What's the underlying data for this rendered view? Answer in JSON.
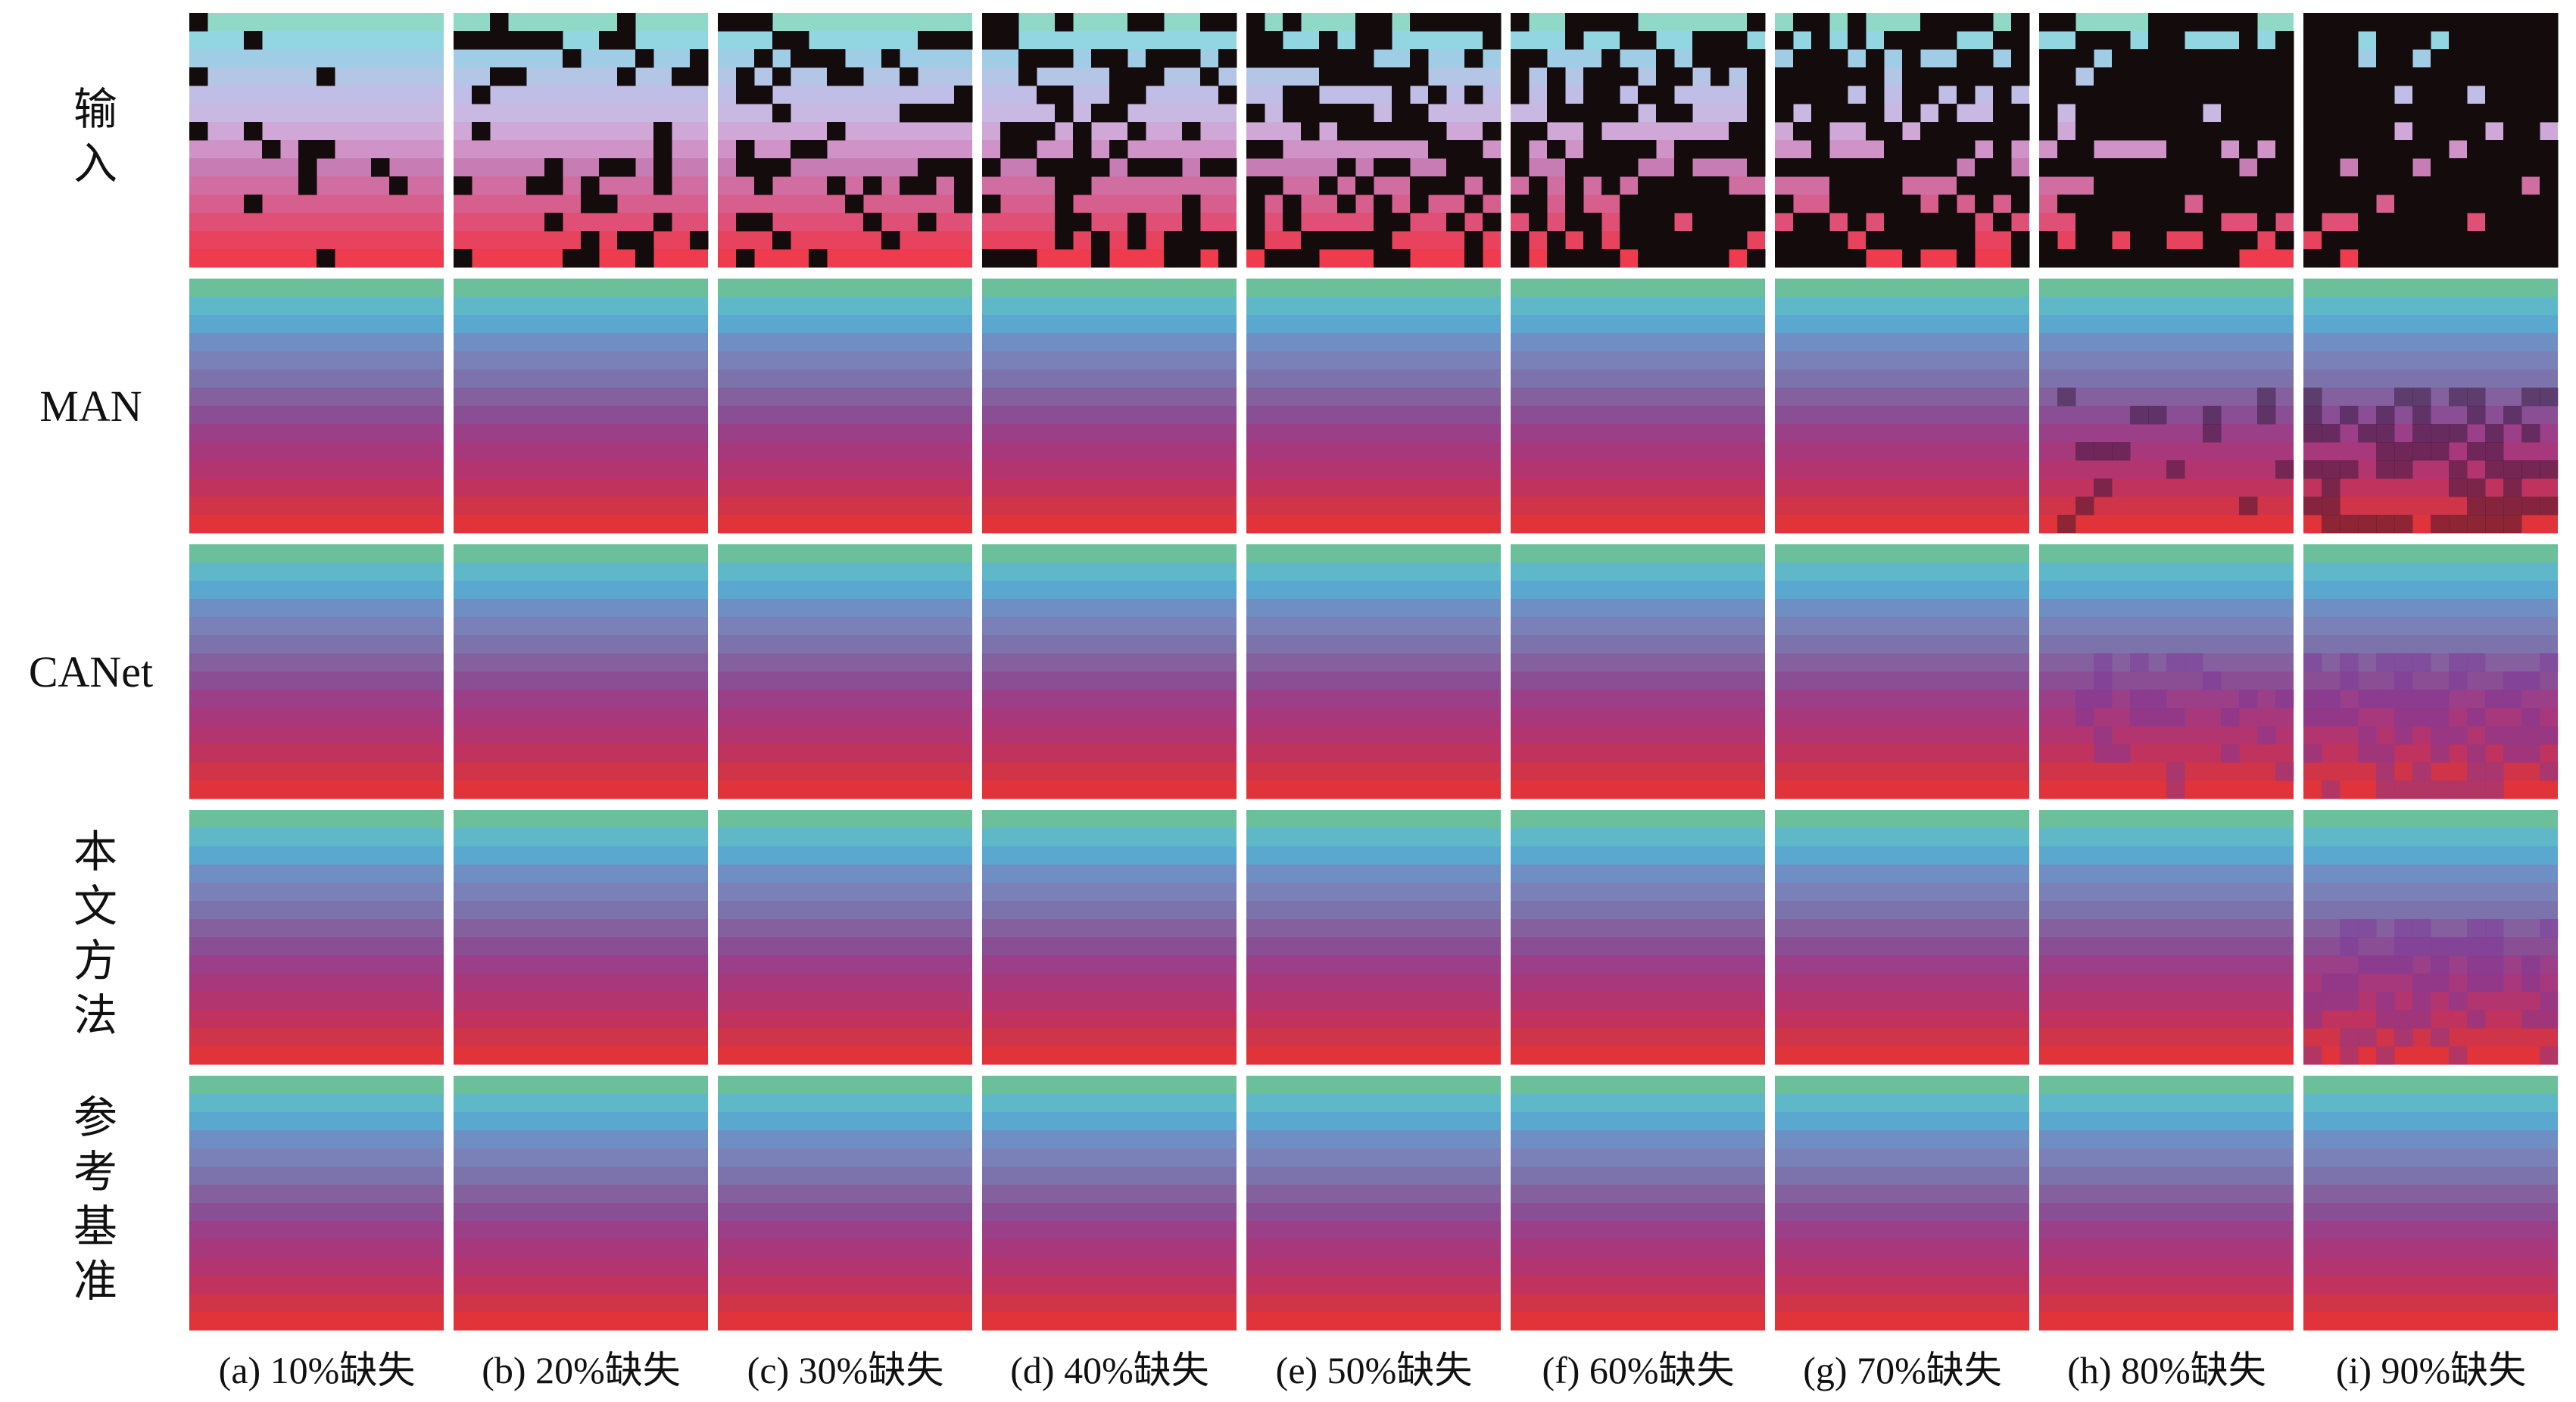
{
  "row_labels": [
    "输入",
    "MAN",
    "CANet",
    "本文方法",
    "参考基准"
  ],
  "captions": [
    "(a) 10%缺失",
    "(b) 20%缺失",
    "(c) 30%缺失",
    "(d) 40%缺失",
    "(e) 50%缺失",
    "(f) 60%缺失",
    "(g) 70%缺失",
    "(h) 80%缺失",
    "(i) 90%缺失"
  ]
}
